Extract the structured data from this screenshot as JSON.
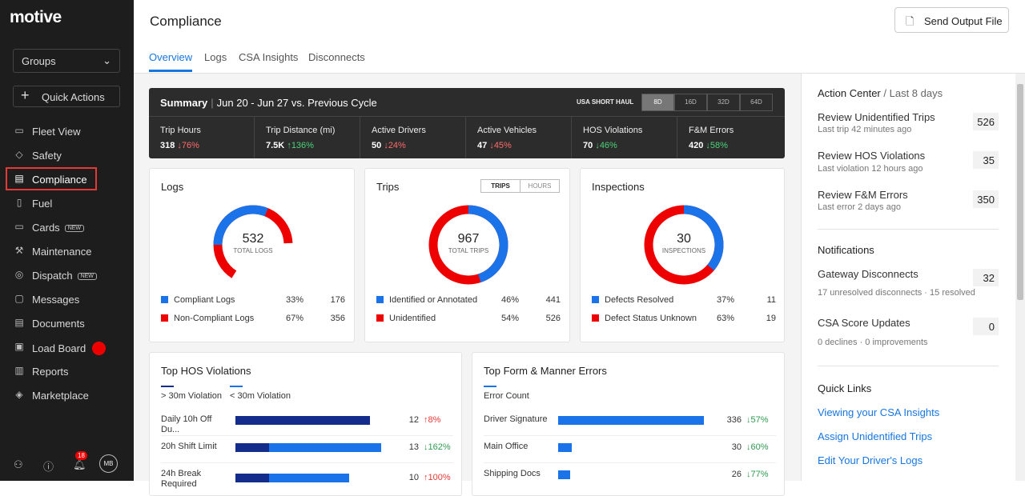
{
  "sidebar": {
    "logo": "motive",
    "groups_label": "Groups",
    "quick_actions_label": "Quick Actions",
    "items": [
      {
        "label": "Fleet View",
        "icon": "monitor-icon"
      },
      {
        "label": "Safety",
        "icon": "shield-icon"
      },
      {
        "label": "Compliance",
        "icon": "document-icon"
      },
      {
        "label": "Fuel",
        "icon": "fuel-icon"
      },
      {
        "label": "Cards",
        "icon": "card-icon",
        "badge": "NEW"
      },
      {
        "label": "Maintenance",
        "icon": "wrench-icon"
      },
      {
        "label": "Dispatch",
        "icon": "pin-icon",
        "badge": "NEW"
      },
      {
        "label": "Messages",
        "icon": "chat-icon"
      },
      {
        "label": "Documents",
        "icon": "file-icon"
      },
      {
        "label": "Load Board",
        "icon": "truck-icon"
      },
      {
        "label": "Reports",
        "icon": "chart-icon"
      },
      {
        "label": "Marketplace",
        "icon": "layers-icon"
      }
    ],
    "notification_count": "18",
    "avatar_initials": "MB"
  },
  "header": {
    "title": "Compliance",
    "send_button": "Send Output File",
    "tabs": [
      "Overview",
      "Logs",
      "CSA Insights",
      "Disconnects"
    ]
  },
  "summary": {
    "title": "Summary",
    "range": "Jun 20 - Jun 27 vs. Previous Cycle",
    "ruleset": "USA SHORT HAUL",
    "periods": [
      "8D",
      "16D",
      "32D",
      "64D"
    ],
    "metrics": [
      {
        "label": "Trip Hours",
        "value": "318",
        "change": "↓76%",
        "dir": "down"
      },
      {
        "label": "Trip Distance (mi)",
        "value": "7.5K",
        "change": "↑136%",
        "dir": "up"
      },
      {
        "label": "Active Drivers",
        "value": "50",
        "change": "↓24%",
        "dir": "down"
      },
      {
        "label": "Active Vehicles",
        "value": "47",
        "change": "↓45%",
        "dir": "down"
      },
      {
        "label": "HOS Violations",
        "value": "70",
        "change": "↓46%",
        "dir": "up"
      },
      {
        "label": "F&M Errors",
        "value": "420",
        "change": "↓58%",
        "dir": "up"
      }
    ]
  },
  "logs_card": {
    "title": "Logs",
    "total": "532",
    "total_label": "TOTAL LOGS",
    "rows": [
      {
        "label": "Compliant Logs",
        "pct": "33%",
        "count": "176"
      },
      {
        "label": "Non-Compliant Logs",
        "pct": "67%",
        "count": "356"
      }
    ]
  },
  "trips_card": {
    "title": "Trips",
    "toggle": [
      "TRIPS",
      "HOURS"
    ],
    "total": "967",
    "total_label": "TOTAL TRIPS",
    "rows": [
      {
        "label": "Identified or Annotated",
        "pct": "46%",
        "count": "441"
      },
      {
        "label": "Unidentified",
        "pct": "54%",
        "count": "526"
      }
    ]
  },
  "inspections_card": {
    "title": "Inspections",
    "total": "30",
    "total_label": "INSPECTIONS",
    "rows": [
      {
        "label": "Defects Resolved",
        "pct": "37%",
        "count": "11"
      },
      {
        "label": "Defect Status Unknown",
        "pct": "63%",
        "count": "19"
      }
    ]
  },
  "hos_card": {
    "title": "Top HOS Violations",
    "legend": [
      "> 30m Violation",
      "< 30m Violation"
    ],
    "rows": [
      {
        "label": "Daily 10h Off Du...",
        "value": "12",
        "change": "↑8%",
        "over30": 12,
        "under30": 0
      },
      {
        "label": "20h Shift Limit",
        "value": "13",
        "change": "↓162%",
        "over30": 3,
        "under30": 10
      },
      {
        "label": "24h Break Required",
        "value": "10",
        "change": "↑100%",
        "over30": 3,
        "under30": 7
      }
    ]
  },
  "fm_card": {
    "title": "Top Form & Manner Errors",
    "legend": "Error Count",
    "rows": [
      {
        "label": "Driver Signature",
        "value": "336",
        "change": "↓57%"
      },
      {
        "label": "Main Office",
        "value": "30",
        "change": "↓60%"
      },
      {
        "label": "Shipping Docs",
        "value": "26",
        "change": "↓77%"
      }
    ]
  },
  "right_panel": {
    "action_center": "Action Center",
    "action_range": "Last 8 days",
    "actions": [
      {
        "title": "Review Unidentified Trips",
        "sub": "Last trip 42 minutes ago",
        "count": "526"
      },
      {
        "title": "Review HOS Violations",
        "sub": "Last violation 12 hours ago",
        "count": "35"
      },
      {
        "title": "Review F&M Errors",
        "sub": "Last error 2 days ago",
        "count": "350"
      }
    ],
    "notifications_title": "Notifications",
    "notifications": [
      {
        "title": "Gateway Disconnects",
        "sub": "17 unresolved disconnects · 15 resolved",
        "count": "32"
      },
      {
        "title": "CSA Score Updates",
        "sub": "0 declines · 0 improvements",
        "count": "0"
      }
    ],
    "quick_links_title": "Quick Links",
    "quick_links": [
      "Viewing your CSA Insights",
      "Assign Unidentified Trips",
      "Edit Your Driver's Logs"
    ]
  },
  "colors": {
    "primary": "#1a73e8",
    "danger": "#e00000",
    "navy": "#142c8c",
    "sidebar": "#1d1d1d"
  }
}
